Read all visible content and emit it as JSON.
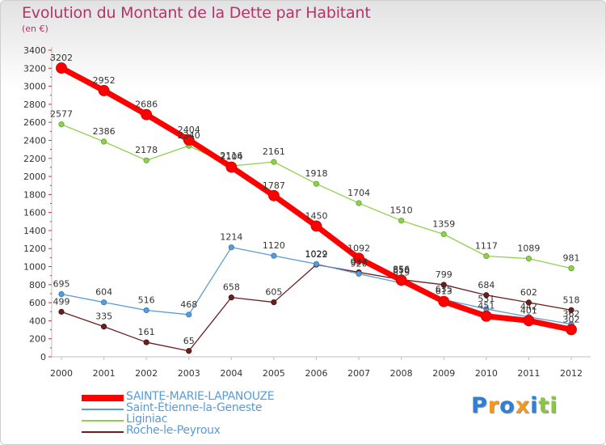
{
  "header": {
    "title": "Evolution du Montant de la Dette par Habitant",
    "subtitle": "(en €)"
  },
  "colors": {
    "title": "#b5336b",
    "sainte_marie": "#ff0000",
    "saint_etienne": "#5b9bd5",
    "liginiac": "#8fd14f",
    "roche": "#6b1f1f"
  },
  "logo": {
    "letters": [
      "P",
      "r",
      "o",
      "x",
      "i",
      "t",
      "i"
    ],
    "colors": [
      "#2f7fd3",
      "#f29a1d",
      "#2f7fd3",
      "#f29a1d",
      "#2f7fd3",
      "#8cc63f",
      "#8cc63f"
    ]
  },
  "chart_data": {
    "type": "line",
    "x": [
      "2000",
      "2001",
      "2002",
      "2003",
      "2004",
      "2005",
      "2006",
      "2007",
      "2008",
      "2009",
      "2010",
      "2011",
      "2012"
    ],
    "ylim": [
      0,
      3400
    ],
    "yticks": [
      "0",
      "200",
      "400",
      "600",
      "800",
      "1000",
      "1200",
      "1400",
      "1600",
      "1800",
      "2000",
      "2200",
      "2400",
      "2600",
      "2800",
      "3000",
      "3200",
      "3400"
    ],
    "grid": false,
    "legend": "bottom-left",
    "series": [
      {
        "name": "Roche-le-Peyroux",
        "color": "#6b1f1f",
        "values": [
          499,
          335,
          161,
          65,
          658,
          605,
          1022,
          937,
          856,
          799,
          684,
          602,
          518
        ],
        "labels": [
          "499",
          "335",
          "161",
          "65",
          "658",
          "605",
          "1022",
          "937",
          "856",
          "799",
          "684",
          "602",
          "518"
        ]
      },
      {
        "name": "Liginiac",
        "color": "#8fd14f",
        "values": [
          2577,
          2386,
          2178,
          2340,
          2116,
          2161,
          1918,
          1704,
          1510,
          1359,
          1117,
          1089,
          981
        ],
        "labels": [
          "2577",
          "2386",
          "2178",
          "2340",
          "2116",
          "2161",
          "1918",
          "1704",
          "1510",
          "1359",
          "1117",
          "1089",
          "981"
        ]
      },
      {
        "name": "Saint-Étienne-la-Geneste",
        "color": "#5b9bd5",
        "values": [
          695,
          604,
          516,
          468,
          1214,
          1120,
          1029,
          920,
          819,
          635,
          531,
          442,
          362
        ],
        "labels": [
          "695",
          "604",
          "516",
          "468",
          "1214",
          "1120",
          "1029",
          "920",
          "819",
          "635",
          "531",
          "442",
          "362"
        ]
      },
      {
        "name": "SAINTE-MARIE-LAPANOUZE",
        "color": "#ff0000",
        "values": [
          3202,
          2952,
          2686,
          2404,
          2104,
          1787,
          1450,
          1092,
          850,
          613,
          451,
          401,
          302
        ],
        "labels": [
          "3202",
          "2952",
          "2686",
          "2404",
          "2104",
          "1787",
          "1450",
          "1092",
          "850",
          "613",
          "451",
          "401",
          "302"
        ]
      }
    ]
  },
  "legend": {
    "items": [
      {
        "label": "SAINTE-MARIE-LAPANOUZE",
        "color": "#ff0000"
      },
      {
        "label": "Saint-Étienne-la-Geneste",
        "color": "#5b9bd5"
      },
      {
        "label": "Liginiac",
        "color": "#8fd14f"
      },
      {
        "label": "Roche-le-Peyroux",
        "color": "#6b1f1f"
      }
    ]
  }
}
